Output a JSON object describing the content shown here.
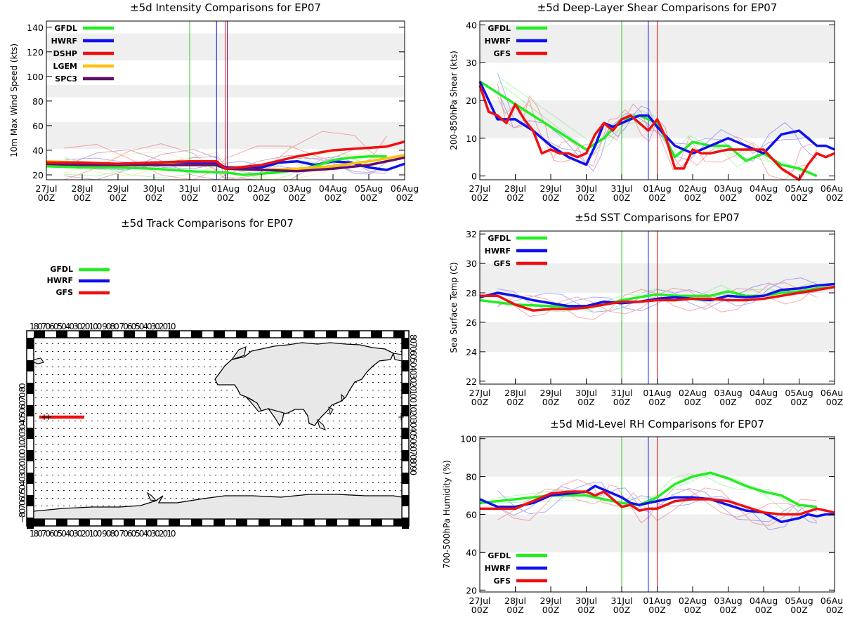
{
  "x_ticks": [
    {
      "d": "27Jul",
      "t": "00Z"
    },
    {
      "d": "28Jul",
      "t": "00Z"
    },
    {
      "d": "29Jul",
      "t": "00Z"
    },
    {
      "d": "30Jul",
      "t": "00Z"
    },
    {
      "d": "31Jul",
      "t": "00Z"
    },
    {
      "d": "01Aug",
      "t": "00Z"
    },
    {
      "d": "02Aug",
      "t": "00Z"
    },
    {
      "d": "03Aug",
      "t": "00Z"
    },
    {
      "d": "04Aug",
      "t": "00Z"
    },
    {
      "d": "05Aug",
      "t": "00Z"
    },
    {
      "d": "06Aug",
      "t": "00Z"
    }
  ],
  "colors": {
    "GFDL": "#22ee22",
    "HWRF": "#1010ee",
    "DSHP": "#ee1010",
    "GFS": "#ee1010",
    "LGEM": "#ffc010",
    "SPC3": "#60106a"
  },
  "chart_data": [
    {
      "id": "intensity",
      "type": "line",
      "title": "±5d Intensity Comparisons for EP07",
      "ylabel": "10m Max Wind Speed (kts)",
      "ylim": [
        16,
        145
      ],
      "yticks": [
        20,
        40,
        60,
        80,
        100,
        120,
        140
      ],
      "bands": [
        [
          41,
          63
        ],
        [
          83,
          93
        ],
        [
          113,
          135
        ]
      ],
      "vlines": [
        {
          "x": 4.0,
          "color": "#22cc22"
        },
        {
          "x": 4.75,
          "color": "#1010ee"
        },
        {
          "x": 5.0,
          "color": "#ee1010"
        }
      ],
      "legend": [
        "GFDL",
        "HWRF",
        "DSHP",
        "LGEM",
        "SPC3"
      ],
      "series": [
        {
          "name": "HWRF",
          "x": [
            0,
            1,
            2,
            3,
            4,
            4.75,
            5,
            5.5,
            6,
            6.5,
            7,
            7.5,
            8,
            8.5,
            9,
            9.5,
            10
          ],
          "y": [
            28,
            29,
            29,
            30,
            30,
            30,
            26,
            26,
            26,
            30,
            31,
            28,
            31,
            30,
            26,
            24,
            29
          ]
        },
        {
          "name": "GFDL",
          "x": [
            0,
            1,
            2,
            3,
            4,
            4.75,
            5,
            5.5,
            6,
            6.5,
            7,
            7.5,
            8,
            8.5,
            9,
            9.5
          ],
          "y": [
            27,
            26,
            26,
            25,
            23,
            22,
            22,
            20,
            21,
            22,
            24,
            27,
            32,
            34,
            35,
            35
          ]
        },
        {
          "name": "LGEM",
          "x": [
            0,
            1,
            2,
            3,
            4,
            4.75,
            5,
            6,
            7,
            8,
            9,
            10
          ],
          "y": [
            31,
            30,
            29,
            29,
            28,
            28,
            25,
            24,
            25,
            27,
            31,
            36
          ]
        },
        {
          "name": "SPC3",
          "x": [
            0,
            1,
            2,
            3,
            4,
            4.75,
            5,
            6,
            7,
            8,
            9,
            10
          ],
          "y": [
            29,
            28,
            28,
            28,
            28,
            28,
            25,
            24,
            23,
            25,
            28,
            34
          ]
        },
        {
          "name": "DSHP",
          "x": [
            0,
            1,
            2,
            3,
            4,
            4.75,
            5,
            6,
            7,
            8,
            9,
            9.5,
            10
          ],
          "y": [
            30,
            30,
            29,
            30,
            31,
            31,
            25,
            28,
            35,
            40,
            42,
            43,
            47
          ]
        }
      ]
    },
    {
      "id": "shear",
      "type": "line",
      "title": "±5d Deep-Layer Shear Comparisons for EP07",
      "ylabel": "200-850hPa Shear (kts)",
      "ylim": [
        -1,
        41
      ],
      "yticks": [
        0,
        10,
        20,
        30,
        40
      ],
      "bands": [
        [
          10,
          20
        ],
        [
          30,
          40
        ]
      ],
      "vlines": [
        {
          "x": 4.0,
          "color": "#22cc22"
        },
        {
          "x": 4.75,
          "color": "#1010ee"
        },
        {
          "x": 5.0,
          "color": "#ee1010"
        }
      ],
      "legend": [
        "GFDL",
        "HWRF",
        "GFS"
      ],
      "series": [
        {
          "name": "GFDL",
          "x": [
            0,
            3,
            3.5,
            4,
            4.5,
            5,
            5.5,
            6,
            6.5,
            7,
            7.5,
            8,
            8.5,
            9,
            9.5
          ],
          "y": [
            25,
            7,
            10,
            15,
            16,
            14,
            5,
            9,
            8,
            8,
            4,
            6,
            3,
            2,
            0
          ]
        },
        {
          "name": "HWRF",
          "x": [
            0,
            0.5,
            1,
            1.5,
            2,
            2.5,
            3,
            3.25,
            3.5,
            3.75,
            4,
            4.25,
            4.5,
            4.75,
            5,
            5.5,
            6,
            6.5,
            7,
            7.5,
            8,
            8.5,
            9,
            9.25,
            9.5,
            9.75,
            10
          ],
          "y": [
            25,
            15,
            15,
            12,
            8,
            5,
            3,
            8,
            14,
            13,
            14,
            15,
            16,
            16,
            13,
            8,
            6,
            8,
            10,
            8,
            6,
            11,
            12,
            10,
            8,
            8,
            7
          ]
        },
        {
          "name": "GFS",
          "x": [
            0,
            0.25,
            0.5,
            0.75,
            1,
            1.25,
            1.5,
            1.75,
            2,
            2.25,
            2.5,
            2.75,
            3,
            3.25,
            3.5,
            3.75,
            4,
            4.25,
            4.5,
            4.75,
            5,
            5.25,
            5.5,
            5.75,
            6,
            6.25,
            6.5,
            7,
            7.5,
            8,
            8.5,
            9,
            9.25,
            9.5,
            9.75,
            10
          ],
          "y": [
            24,
            17,
            16,
            14,
            19,
            15,
            12,
            6,
            7,
            6,
            6,
            5,
            6,
            11,
            14,
            12,
            15,
            16,
            14,
            12,
            15,
            10,
            2,
            2,
            7,
            6,
            6,
            7,
            7,
            7,
            2,
            -1,
            3,
            6,
            5,
            6
          ]
        }
      ]
    },
    {
      "id": "sst",
      "type": "line",
      "title": "±5d SST Comparisons for EP07",
      "ylabel": "Sea Surface Temp (C)",
      "ylim": [
        21.8,
        32.2
      ],
      "yticks": [
        22,
        24,
        26,
        28,
        30,
        32
      ],
      "bands": [
        [
          24,
          26
        ],
        [
          28,
          30
        ]
      ],
      "vlines": [
        {
          "x": 4.0,
          "color": "#22cc22"
        },
        {
          "x": 4.75,
          "color": "#1010ee"
        },
        {
          "x": 5.0,
          "color": "#ee1010"
        }
      ],
      "legend": [
        "GFDL",
        "HWRF",
        "GFS"
      ],
      "series": [
        {
          "name": "GFDL",
          "x": [
            0,
            1,
            2,
            3,
            3.5,
            4,
            4.5,
            5,
            5.5,
            6,
            6.5,
            7,
            7.5,
            8,
            8.5,
            9,
            9.5,
            10
          ],
          "y": [
            27.5,
            27.2,
            27.1,
            27.0,
            27.2,
            27.5,
            27.7,
            27.9,
            27.8,
            27.8,
            27.8,
            28.1,
            27.8,
            27.8,
            28.0,
            28.1,
            28.3,
            28.4
          ]
        },
        {
          "name": "HWRF",
          "x": [
            0,
            0.5,
            1,
            1.5,
            2,
            2.5,
            3,
            3.5,
            4,
            4.5,
            5,
            5.5,
            6,
            6.5,
            7,
            7.5,
            8,
            8.5,
            9,
            9.5,
            10
          ],
          "y": [
            27.7,
            28.0,
            27.8,
            27.5,
            27.3,
            27.1,
            27.1,
            27.4,
            27.3,
            27.4,
            27.6,
            27.7,
            27.6,
            27.5,
            27.8,
            27.7,
            27.8,
            28.2,
            28.3,
            28.5,
            28.6
          ]
        },
        {
          "name": "GFS",
          "x": [
            0,
            0.5,
            1,
            1.5,
            2,
            2.5,
            3,
            3.5,
            4,
            4.5,
            5,
            5.5,
            6,
            6.5,
            7,
            7.5,
            8,
            8.5,
            9,
            9.5,
            10
          ],
          "y": [
            27.8,
            27.8,
            27.2,
            26.8,
            26.9,
            26.9,
            27.0,
            27.2,
            27.4,
            27.4,
            27.5,
            27.5,
            27.6,
            27.6,
            27.5,
            27.5,
            27.6,
            27.8,
            28.0,
            28.2,
            28.4
          ]
        }
      ]
    },
    {
      "id": "rh",
      "type": "line",
      "title": "±5d Mid-Level RH Comparisons for EP07",
      "ylabel": "700-500hPa Humidity (%)",
      "ylim": [
        19,
        101
      ],
      "yticks": [
        20,
        40,
        60,
        80,
        100
      ],
      "bands": [
        [
          40,
          60
        ],
        [
          80,
          100
        ]
      ],
      "vlines": [
        {
          "x": 4.0,
          "color": "#22cc22"
        },
        {
          "x": 4.75,
          "color": "#1010ee"
        },
        {
          "x": 5.0,
          "color": "#ee1010"
        }
      ],
      "legend": [
        "GFDL",
        "HWRF",
        "GFS"
      ],
      "series": [
        {
          "name": "GFDL",
          "x": [
            0,
            2,
            3,
            3.5,
            4,
            4.5,
            5,
            5.5,
            6,
            6.5,
            7,
            7.5,
            8,
            8.5,
            9,
            9.5
          ],
          "y": [
            66,
            70,
            70,
            68,
            66,
            65,
            69,
            76,
            80,
            82,
            79,
            75,
            72,
            70,
            65,
            64
          ]
        },
        {
          "name": "HWRF",
          "x": [
            0,
            0.5,
            1,
            1.5,
            2,
            2.5,
            3,
            3.25,
            3.5,
            3.75,
            4,
            4.25,
            4.5,
            4.75,
            5,
            5.5,
            6,
            6.5,
            7,
            7.5,
            8,
            8.5,
            9,
            9.25,
            9.5,
            9.75,
            10
          ],
          "y": [
            68,
            64,
            64,
            66,
            70,
            71,
            72,
            75,
            73,
            71,
            69,
            66,
            65,
            66,
            67,
            69,
            69,
            68,
            65,
            62,
            61,
            56,
            58,
            60,
            59,
            60,
            60
          ]
        },
        {
          "name": "GFS",
          "x": [
            0,
            0.5,
            1,
            1.5,
            2,
            2.5,
            3,
            3.25,
            3.5,
            3.75,
            4,
            4.25,
            4.5,
            4.75,
            5,
            5.5,
            6,
            6.5,
            7,
            7.5,
            8,
            8.5,
            9,
            9.5,
            10
          ],
          "y": [
            63,
            63,
            63,
            67,
            71,
            72,
            72,
            70,
            72,
            68,
            64,
            65,
            62,
            63,
            63,
            67,
            68,
            68,
            67,
            64,
            61,
            60,
            60,
            63,
            61
          ]
        }
      ]
    },
    {
      "id": "track",
      "type": "scatter",
      "title": "±5d Track Comparisons for EP07",
      "legend": [
        "GFDL",
        "HWRF",
        "GFS"
      ],
      "lon_labels": "180706050403020100 9080 70605040302010",
      "lat_labels_left": "−80706050403020100 10203040506070 80",
      "lat_labels_right": "80706050403020100 102030405060708090"
    }
  ]
}
